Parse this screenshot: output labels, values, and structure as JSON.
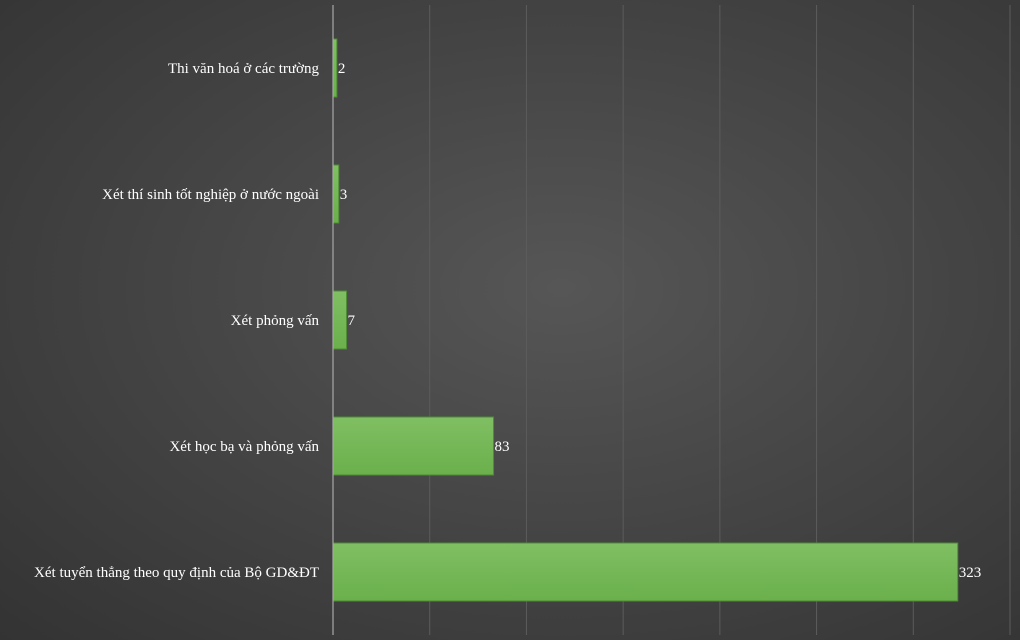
{
  "chart_data": {
    "type": "bar",
    "orientation": "horizontal",
    "categories": [
      "Thi văn hoá ở các trường",
      "Xét thí sinh tốt nghiệp ở nước ngoài",
      "Xét phỏng vấn",
      "Xét học bạ và phỏng vấn",
      "Xét tuyển thẳng theo quy định của Bộ GD&ĐT"
    ],
    "values": [
      2,
      3,
      7,
      83,
      323
    ],
    "data_labels": [
      "2",
      "3",
      "7",
      "83",
      "323"
    ],
    "title": "",
    "xlabel": "",
    "ylabel": "",
    "xlim": [
      0,
      350
    ],
    "grid": "vertical",
    "legend": "none",
    "bar_color": "#6ab04c",
    "bar_color_light": "#80bf63",
    "bar_edge_color": "#4e8a34",
    "background_color": "#474747",
    "gridline_color": "#5c5c5c",
    "axis_color": "#a8a8a8",
    "label_color": "#ffffff"
  }
}
